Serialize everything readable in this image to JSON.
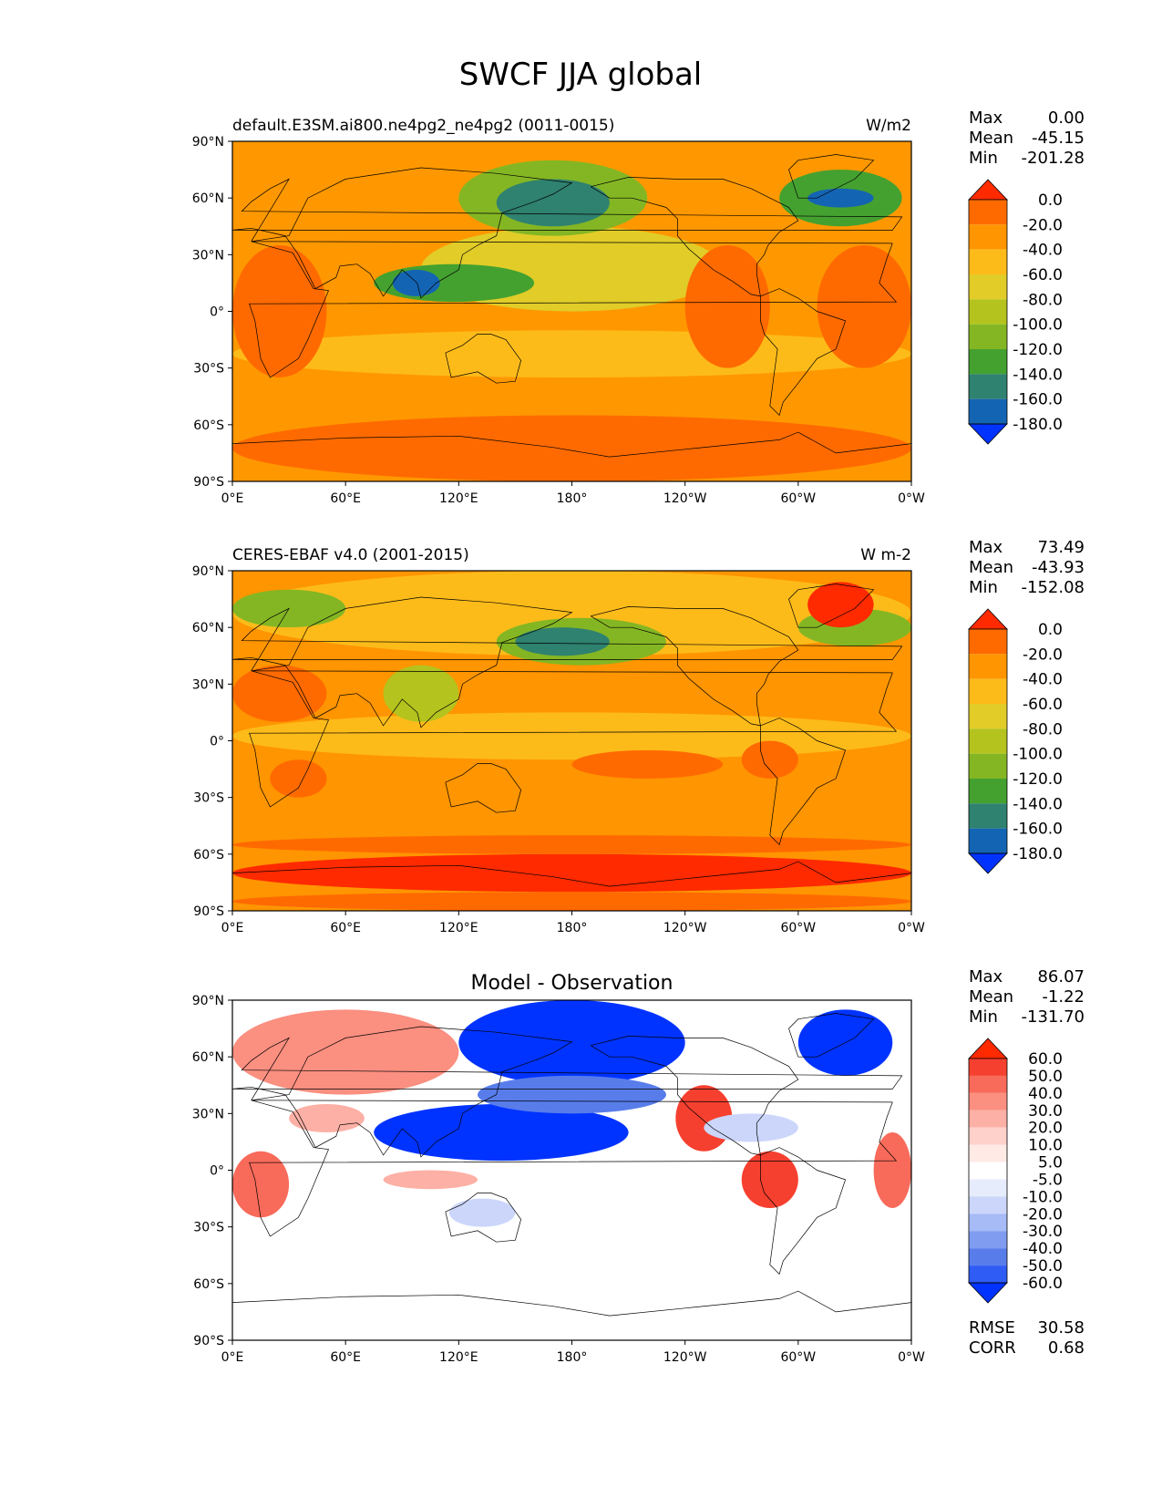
{
  "figure": {
    "title": "SWCF JJA global"
  },
  "axes": {
    "lat_ticks": [
      "90°N",
      "60°N",
      "30°N",
      "0°",
      "30°S",
      "60°S",
      "90°S"
    ],
    "lon_ticks": [
      "0°E",
      "60°E",
      "120°E",
      "180°",
      "120°W",
      "60°W",
      "0°W"
    ]
  },
  "panels": [
    {
      "id": "model",
      "left_title": "default.E3SM.ai800.ne4pg2_ne4pg2 (0011-0015)",
      "center_title": "",
      "units": "W/m2",
      "stats": [
        {
          "label": "Max",
          "value": "0.00"
        },
        {
          "label": "Mean",
          "value": "-45.15"
        },
        {
          "label": "Min",
          "value": "-201.28"
        }
      ],
      "colorbar": {
        "labels": [
          "0.0",
          "-20.0",
          "-40.0",
          "-60.0",
          "-80.0",
          "-100.0",
          "-120.0",
          "-140.0",
          "-160.0",
          "-180.0"
        ],
        "colors": [
          "#ff2a00",
          "#ff6a00",
          "#ff9500",
          "#fdbb1a",
          "#e1cc28",
          "#b4c31e",
          "#84b623",
          "#44a130",
          "#2f8170",
          "#1464b4",
          "#0033ff"
        ]
      },
      "background": "#ff9800",
      "regions": [
        {
          "lon": [
            0,
            360
          ],
          "lat": [
            -90,
            -55
          ],
          "color": "#ff6a00"
        },
        {
          "lon": [
            0,
            360
          ],
          "lat": [
            -35,
            -10
          ],
          "color": "#fdbb1a"
        },
        {
          "lon": [
            100,
            260
          ],
          "lat": [
            0,
            45
          ],
          "color": "#e1cc28"
        },
        {
          "lon": [
            120,
            220
          ],
          "lat": [
            40,
            80
          ],
          "color": "#84b623"
        },
        {
          "lon": [
            140,
            200
          ],
          "lat": [
            45,
            70
          ],
          "color": "#2f8170"
        },
        {
          "lon": [
            75,
            160
          ],
          "lat": [
            5,
            25
          ],
          "color": "#44a130"
        },
        {
          "lon": [
            85,
            110
          ],
          "lat": [
            8,
            22
          ],
          "color": "#1464b4"
        },
        {
          "lon": [
            290,
            355
          ],
          "lat": [
            45,
            75
          ],
          "color": "#44a130"
        },
        {
          "lon": [
            305,
            340
          ],
          "lat": [
            55,
            65
          ],
          "color": "#1464b4"
        },
        {
          "lon": [
            240,
            285
          ],
          "lat": [
            -30,
            35
          ],
          "color": "#ff6a00"
        },
        {
          "lon": [
            310,
            360
          ],
          "lat": [
            -30,
            35
          ],
          "color": "#ff6a00"
        },
        {
          "lon": [
            0,
            50
          ],
          "lat": [
            -35,
            35
          ],
          "color": "#ff6a00"
        }
      ]
    },
    {
      "id": "obs",
      "left_title": "CERES-EBAF v4.0 (2001-2015)",
      "center_title": "",
      "units": "W m-2",
      "stats": [
        {
          "label": "Max",
          "value": "73.49"
        },
        {
          "label": "Mean",
          "value": "-43.93"
        },
        {
          "label": "Min",
          "value": "-152.08"
        }
      ],
      "colorbar": {
        "labels": [
          "0.0",
          "-20.0",
          "-40.0",
          "-60.0",
          "-80.0",
          "-100.0",
          "-120.0",
          "-140.0",
          "-160.0",
          "-180.0"
        ],
        "colors": [
          "#ff2a00",
          "#ff6a00",
          "#ff9500",
          "#fdbb1a",
          "#e1cc28",
          "#b4c31e",
          "#84b623",
          "#44a130",
          "#2f8170",
          "#1464b4",
          "#0033ff"
        ]
      },
      "background": "#ff9500",
      "regions": [
        {
          "lon": [
            0,
            360
          ],
          "lat": [
            -80,
            -60
          ],
          "color": "#ff2a00"
        },
        {
          "lon": [
            0,
            360
          ],
          "lat": [
            -60,
            -50
          ],
          "color": "#ff6a00"
        },
        {
          "lon": [
            0,
            360
          ],
          "lat": [
            -90,
            -80
          ],
          "color": "#ff6a00"
        },
        {
          "lon": [
            0,
            360
          ],
          "lat": [
            45,
            90
          ],
          "color": "#fdbb1a"
        },
        {
          "lon": [
            0,
            360
          ],
          "lat": [
            -10,
            15
          ],
          "color": "#fdbb1a"
        },
        {
          "lon": [
            140,
            230
          ],
          "lat": [
            40,
            65
          ],
          "color": "#84b623"
        },
        {
          "lon": [
            150,
            200
          ],
          "lat": [
            45,
            60
          ],
          "color": "#2f8170"
        },
        {
          "lon": [
            0,
            60
          ],
          "lat": [
            60,
            80
          ],
          "color": "#84b623"
        },
        {
          "lon": [
            300,
            360
          ],
          "lat": [
            50,
            70
          ],
          "color": "#84b623"
        },
        {
          "lon": [
            305,
            340
          ],
          "lat": [
            60,
            84
          ],
          "color": "#ff2a00"
        },
        {
          "lon": [
            80,
            120
          ],
          "lat": [
            10,
            40
          ],
          "color": "#b4c31e"
        },
        {
          "lon": [
            180,
            260
          ],
          "lat": [
            15,
            35
          ],
          "color": "#ff9500"
        },
        {
          "lon": [
            180,
            260
          ],
          "lat": [
            -20,
            -5
          ],
          "color": "#ff6a00"
        },
        {
          "lon": [
            270,
            300
          ],
          "lat": [
            -20,
            0
          ],
          "color": "#ff6a00"
        },
        {
          "lon": [
            0,
            50
          ],
          "lat": [
            10,
            40
          ],
          "color": "#ff6a00"
        },
        {
          "lon": [
            20,
            50
          ],
          "lat": [
            -30,
            -10
          ],
          "color": "#ff6a00"
        }
      ]
    },
    {
      "id": "diff",
      "left_title": "",
      "center_title": "Model - Observation",
      "units": "",
      "stats": [
        {
          "label": "Max",
          "value": "86.07"
        },
        {
          "label": "Mean",
          "value": "-1.22"
        },
        {
          "label": "Min",
          "value": "-131.70"
        }
      ],
      "extra_stats": [
        {
          "label": "RMSE",
          "value": "30.58"
        },
        {
          "label": "CORR",
          "value": "0.68"
        }
      ],
      "colorbar": {
        "labels": [
          "60.0",
          "50.0",
          "40.0",
          "30.0",
          "20.0",
          "10.0",
          "5.0",
          "-5.0",
          "-10.0",
          "-20.0",
          "-30.0",
          "-40.0",
          "-50.0",
          "-60.0"
        ],
        "colors": [
          "#ff2a00",
          "#f6402f",
          "#f86a5a",
          "#fb8f80",
          "#fdb0a5",
          "#fed1ca",
          "#ffeae6",
          "#ffffff",
          "#e6ecfc",
          "#cbd6fa",
          "#a7bbf6",
          "#7f9cf1",
          "#587deb",
          "#2e5cf5",
          "#0033ff"
        ]
      },
      "background": "#ffffff",
      "regions": [
        {
          "lon": [
            0,
            120
          ],
          "lat": [
            40,
            85
          ],
          "color": "#fb8f80"
        },
        {
          "lon": [
            120,
            240
          ],
          "lat": [
            45,
            90
          ],
          "color": "#0033ff"
        },
        {
          "lon": [
            75,
            210
          ],
          "lat": [
            5,
            35
          ],
          "color": "#0033ff"
        },
        {
          "lon": [
            130,
            230
          ],
          "lat": [
            30,
            50
          ],
          "color": "#587deb"
        },
        {
          "lon": [
            300,
            350
          ],
          "lat": [
            50,
            85
          ],
          "color": "#0033ff"
        },
        {
          "lon": [
            235,
            265
          ],
          "lat": [
            10,
            45
          ],
          "color": "#f6402f"
        },
        {
          "lon": [
            270,
            300
          ],
          "lat": [
            -20,
            10
          ],
          "color": "#f6402f"
        },
        {
          "lon": [
            0,
            30
          ],
          "lat": [
            -25,
            10
          ],
          "color": "#f86a5a"
        },
        {
          "lon": [
            340,
            360
          ],
          "lat": [
            -20,
            20
          ],
          "color": "#f86a5a"
        },
        {
          "lon": [
            80,
            130
          ],
          "lat": [
            -10,
            0
          ],
          "color": "#fdb0a5"
        },
        {
          "lon": [
            115,
            150
          ],
          "lat": [
            -30,
            -15
          ],
          "color": "#cbd6fa"
        },
        {
          "lon": [
            250,
            300
          ],
          "lat": [
            15,
            30
          ],
          "color": "#cbd6fa"
        },
        {
          "lon": [
            30,
            70
          ],
          "lat": [
            20,
            35
          ],
          "color": "#fdb0a5"
        }
      ]
    }
  ]
}
